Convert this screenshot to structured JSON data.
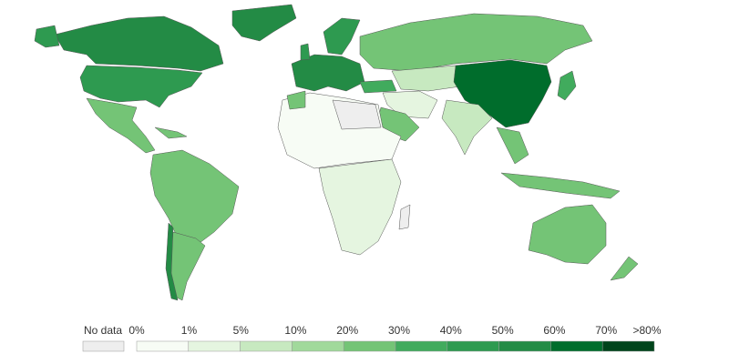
{
  "legend": {
    "no_data": {
      "label": "No data",
      "color": "#eeeeee"
    },
    "labels": [
      "0%",
      "1%",
      "5%",
      "10%",
      "20%",
      "30%",
      "40%",
      "50%",
      "60%",
      "70%",
      ">80%"
    ],
    "colors": [
      "#f7fcf5",
      "#e5f5e0",
      "#c7e9c0",
      "#a1d99b",
      "#74c476",
      "#41ab5d",
      "#2e9a50",
      "#238b45",
      "#006d2c",
      "#00441b"
    ]
  }
}
